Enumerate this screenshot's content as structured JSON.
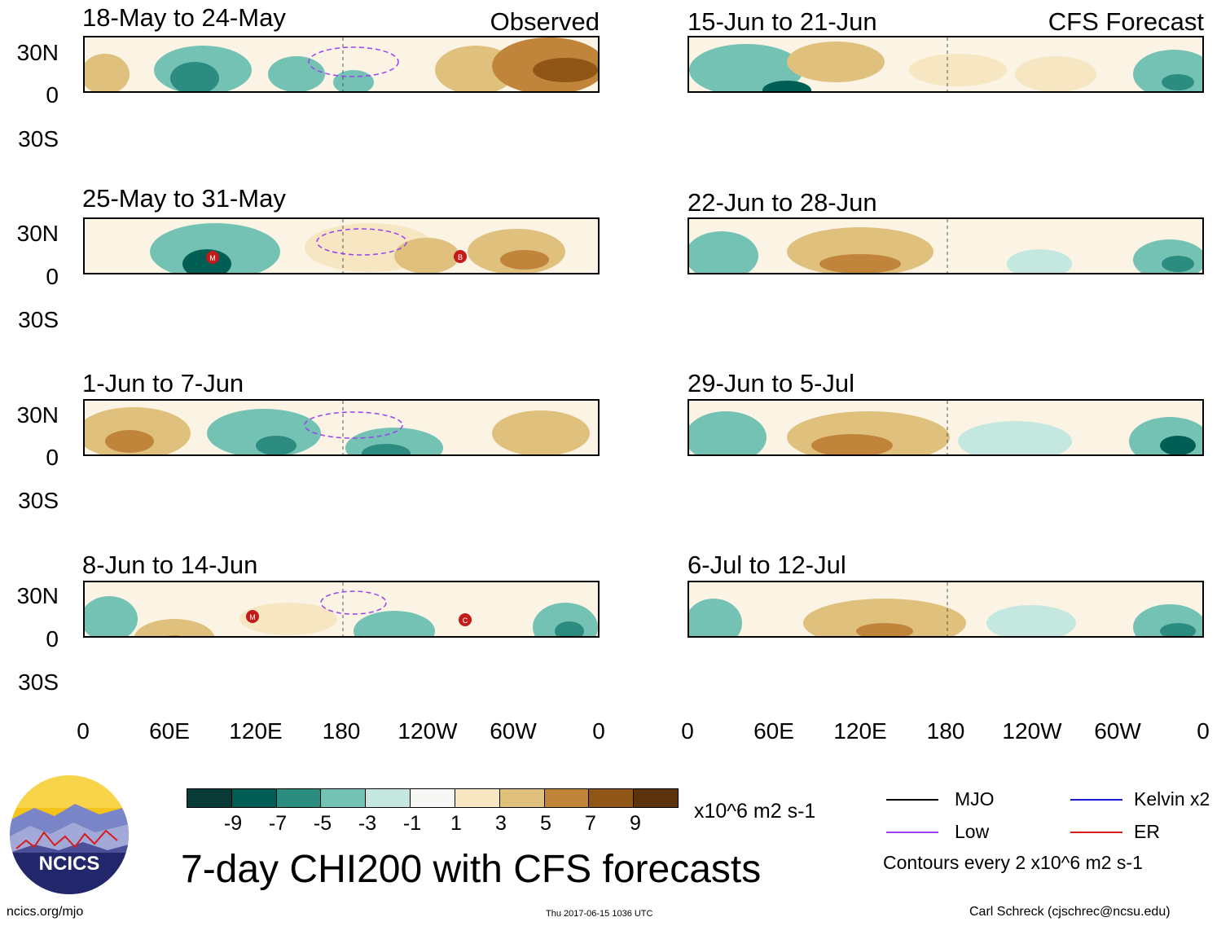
{
  "header": {
    "observed_label": "Observed",
    "forecast_label": "CFS Forecast"
  },
  "panels_observed": [
    {
      "title": "18-May to 24-May"
    },
    {
      "title": "25-May to 31-May"
    },
    {
      "title": "1-Jun to 7-Jun"
    },
    {
      "title": "8-Jun to 14-Jun"
    }
  ],
  "panels_forecast": [
    {
      "title": "15-Jun to 21-Jun"
    },
    {
      "title": "22-Jun to 28-Jun"
    },
    {
      "title": "29-Jun to 5-Jul"
    },
    {
      "title": "6-Jul to 12-Jul"
    }
  ],
  "y_ticks": [
    "30N",
    "0",
    "30S"
  ],
  "x_ticks": [
    "0",
    "60E",
    "120E",
    "180",
    "120W",
    "60W",
    "0"
  ],
  "storm_markers": [
    "M",
    "B",
    "M",
    "C"
  ],
  "colorbar": {
    "colors": [
      "#0a3a35",
      "#005e55",
      "#2d8c80",
      "#74c2b4",
      "#c4e8e0",
      "#f7f7f5",
      "#f6e6c2",
      "#dfc07d",
      "#c0853a",
      "#8f5615",
      "#5a330c"
    ],
    "ticks": [
      "-9",
      "-7",
      "-5",
      "-3",
      "-1",
      "1",
      "3",
      "5",
      "7",
      "9"
    ],
    "units": "x10^6 m2 s-1"
  },
  "title": "7-day CHI200 with CFS forecasts",
  "legend": {
    "items": [
      {
        "label": "MJO",
        "color": "#000000"
      },
      {
        "label": "Low",
        "color": "#9b3ff0"
      },
      {
        "label": "Kelvin x2",
        "color": "#1a1ad6"
      },
      {
        "label": "ER",
        "color": "#d81a1a"
      }
    ],
    "note": "Contours every 2 x10^6 m2 s-1"
  },
  "logo_text": "NCICS",
  "footer": {
    "url": "ncics.org/mjo",
    "timestamp": "Thu 2017-06-15 1036 UTC",
    "credit": "Carl Schreck (cjschrec@ncsu.edu)"
  }
}
